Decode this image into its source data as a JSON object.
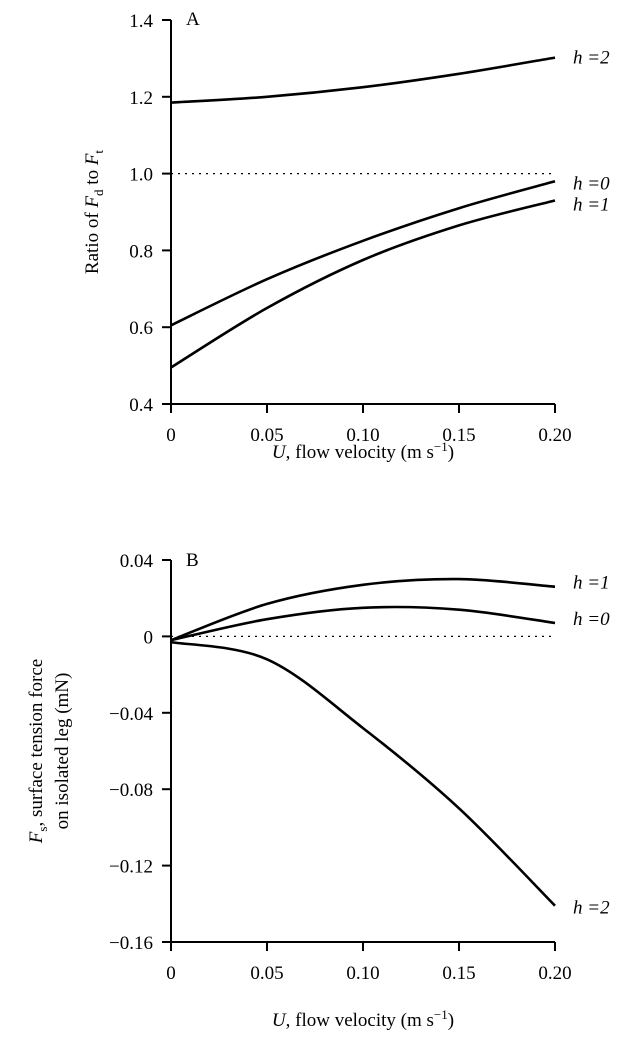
{
  "chart_data": [
    {
      "type": "line",
      "panel_label": "A",
      "xlabel": {
        "var": "U",
        "text": ", flow velocity (m s",
        "sup": "−1",
        "close": ")"
      },
      "ylabel": {
        "pre": "Ratio of ",
        "v1": "F",
        "s1": "d",
        "mid": " to ",
        "v2": "F",
        "s2": "t"
      },
      "xlim": [
        0,
        0.2
      ],
      "ylim": [
        0.4,
        1.4
      ],
      "xticks": [
        0,
        0.05,
        0.1,
        0.15,
        0.2
      ],
      "xtick_labels": [
        "0",
        "0.05",
        "0.10",
        "0.15",
        "0.20"
      ],
      "yticks": [
        0.4,
        0.6,
        0.8,
        1.0,
        1.2,
        1.4
      ],
      "ytick_labels": [
        "0.4",
        "0.6",
        "0.8",
        "1.0",
        "1.2",
        "1.4"
      ],
      "reference_line": {
        "y": 1.0,
        "style": "dotted"
      },
      "series": [
        {
          "name": "h =2",
          "x": [
            0,
            0.05,
            0.1,
            0.15,
            0.2
          ],
          "y": [
            1.185,
            1.2,
            1.225,
            1.26,
            1.302
          ]
        },
        {
          "name": "h =0",
          "x": [
            0,
            0.05,
            0.1,
            0.15,
            0.2
          ],
          "y": [
            0.605,
            0.725,
            0.825,
            0.91,
            0.98
          ]
        },
        {
          "name": "h =1",
          "x": [
            0,
            0.05,
            0.1,
            0.15,
            0.2
          ],
          "y": [
            0.495,
            0.65,
            0.775,
            0.865,
            0.93
          ]
        }
      ]
    },
    {
      "type": "line",
      "panel_label": "B",
      "xlabel": {
        "var": "U",
        "text": ", flow velocity (m s",
        "sup": "−1",
        "close": ")"
      },
      "ylabel": {
        "line1_var": "F",
        "line1_sub": "s",
        "line1_text": ", surface tension force",
        "line2": "on isolated leg (mN)"
      },
      "xlim": [
        0,
        0.2
      ],
      "ylim": [
        -0.16,
        0.04
      ],
      "xticks": [
        0,
        0.05,
        0.1,
        0.15,
        0.2
      ],
      "xtick_labels": [
        "0",
        "0.05",
        "0.10",
        "0.15",
        "0.20"
      ],
      "yticks": [
        -0.16,
        -0.12,
        -0.08,
        -0.04,
        0,
        0.04
      ],
      "ytick_labels": [
        "−0.16",
        "−0.12",
        "−0.08",
        "−0.04",
        "0",
        "0.04"
      ],
      "reference_line": {
        "y": 0,
        "style": "dotted"
      },
      "series": [
        {
          "name": "h =1",
          "x": [
            0,
            0.05,
            0.1,
            0.15,
            0.2
          ],
          "y": [
            -0.002,
            0.017,
            0.027,
            0.03,
            0.026
          ]
        },
        {
          "name": "h =0",
          "x": [
            0,
            0.05,
            0.1,
            0.15,
            0.2
          ],
          "y": [
            -0.002,
            0.009,
            0.015,
            0.014,
            0.007
          ]
        },
        {
          "name": "h =2",
          "x": [
            0,
            0.05,
            0.1,
            0.15,
            0.2
          ],
          "y": [
            -0.003,
            -0.012,
            -0.048,
            -0.09,
            -0.141
          ]
        }
      ]
    }
  ]
}
